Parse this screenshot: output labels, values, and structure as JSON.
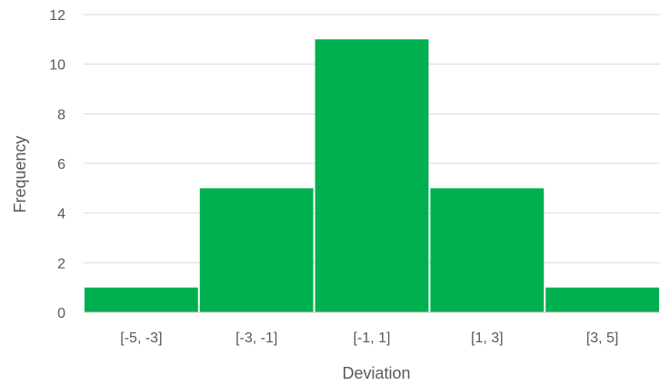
{
  "chart_data": {
    "type": "bar",
    "categories": [
      "[-5, -3]",
      "[-3, -1]",
      "[-1, 1]",
      "[1, 3]",
      "[3, 5]"
    ],
    "values": [
      1,
      5,
      11,
      5,
      1
    ],
    "xlabel": "Deviation",
    "ylabel": "Frequency",
    "ylim": [
      0,
      12
    ],
    "yticks": [
      0,
      2,
      4,
      6,
      8,
      10,
      12
    ],
    "bar_color": "#00B050",
    "gridlines": true,
    "legend": "none"
  }
}
